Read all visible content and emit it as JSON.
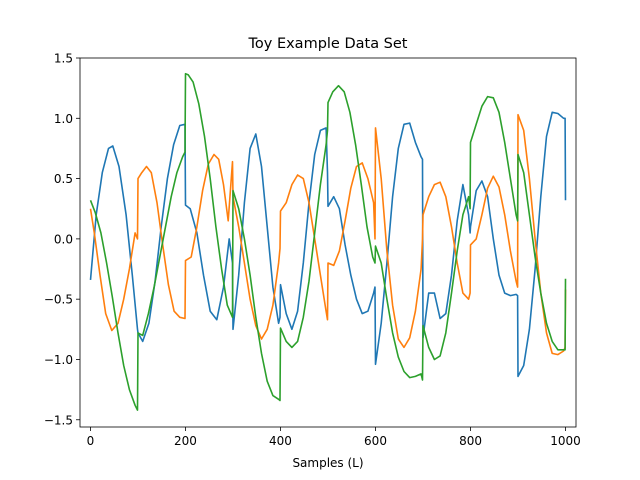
{
  "chart_data": {
    "type": "line",
    "title": "Toy Example Data Set",
    "xlabel": "Samples (L)",
    "ylabel": "",
    "xlim": [
      -22,
      1022
    ],
    "ylim": [
      -1.56,
      1.5
    ],
    "x_ticks": [
      0,
      200,
      400,
      600,
      800,
      1000
    ],
    "y_ticks": [
      -1.5,
      -1.0,
      -0.5,
      0.0,
      0.5,
      1.0,
      1.5
    ],
    "x_tick_labels": [
      "0",
      "200",
      "400",
      "600",
      "800",
      "1000"
    ],
    "y_tick_labels": [
      "−1.5",
      "−1.0",
      "−0.5",
      "0.0",
      "0.5",
      "1.0",
      "1.5"
    ],
    "grid": false,
    "legend": "none",
    "series": [
      {
        "color": "#1f77b4",
        "x": [
          0,
          12,
          25,
          38,
          47,
          60,
          75,
          88,
          99,
          100,
          110,
          123,
          136,
          149,
          162,
          175,
          188,
          199,
          200,
          210,
          224,
          238,
          252,
          266,
          280,
          292,
          299,
          300,
          312,
          324,
          336,
          348,
          360,
          372,
          384,
          396,
          399,
          400,
          412,
          424,
          436,
          448,
          460,
          472,
          484,
          496,
          499,
          500,
          512,
          524,
          536,
          548,
          560,
          572,
          584,
          596,
          599,
          600,
          612,
          624,
          636,
          648,
          660,
          672,
          684,
          696,
          699,
          700,
          712,
          724,
          736,
          748,
          760,
          772,
          784,
          796,
          799,
          800,
          812,
          824,
          836,
          848,
          860,
          872,
          884,
          896,
          899,
          900,
          912,
          924,
          936,
          948,
          960,
          972,
          984,
          996,
          999,
          1000
        ],
        "y": [
          -0.34,
          0.2,
          0.55,
          0.75,
          0.77,
          0.6,
          0.2,
          -0.3,
          -0.75,
          -0.78,
          -0.85,
          -0.7,
          -0.35,
          0.1,
          0.5,
          0.78,
          0.94,
          0.95,
          0.28,
          0.25,
          0.05,
          -0.3,
          -0.6,
          -0.67,
          -0.4,
          0.0,
          -0.2,
          -0.75,
          -0.3,
          0.3,
          0.75,
          0.87,
          0.6,
          0.1,
          -0.4,
          -0.7,
          -0.65,
          -0.38,
          -0.62,
          -0.75,
          -0.6,
          -0.2,
          0.3,
          0.7,
          0.9,
          0.92,
          0.55,
          0.27,
          0.35,
          0.25,
          -0.05,
          -0.3,
          -0.5,
          -0.62,
          -0.6,
          -0.45,
          -0.4,
          -1.04,
          -0.7,
          -0.2,
          0.35,
          0.75,
          0.95,
          0.96,
          0.8,
          0.68,
          0.66,
          -0.82,
          -0.45,
          -0.45,
          -0.66,
          -0.62,
          -0.3,
          0.15,
          0.45,
          0.2,
          0.05,
          0.1,
          0.4,
          0.48,
          0.35,
          0.0,
          -0.3,
          -0.45,
          -0.47,
          -0.46,
          -0.47,
          -1.14,
          -1.05,
          -0.75,
          -0.25,
          0.35,
          0.85,
          1.05,
          1.04,
          1.0,
          1.0,
          0.32
        ]
      },
      {
        "color": "#ff7f0e",
        "x": [
          0,
          8,
          20,
          32,
          45,
          58,
          70,
          82,
          94,
          99,
          100,
          108,
          118,
          128,
          140,
          152,
          164,
          176,
          188,
          199,
          200,
          212,
          224,
          236,
          248,
          260,
          270,
          280,
          290,
          299,
          300,
          312,
          324,
          336,
          348,
          360,
          372,
          384,
          396,
          399,
          400,
          412,
          424,
          436,
          448,
          460,
          472,
          484,
          496,
          499,
          500,
          512,
          524,
          536,
          548,
          560,
          572,
          584,
          596,
          599,
          600,
          612,
          624,
          636,
          648,
          660,
          672,
          684,
          696,
          699,
          700,
          712,
          724,
          736,
          748,
          760,
          772,
          784,
          796,
          799,
          800,
          812,
          824,
          836,
          848,
          860,
          872,
          884,
          896,
          899,
          900,
          912,
          924,
          936,
          948,
          960,
          972,
          984,
          996,
          999,
          1000
        ],
        "y": [
          0.25,
          0.05,
          -0.3,
          -0.62,
          -0.76,
          -0.7,
          -0.5,
          -0.25,
          0.05,
          0.0,
          0.5,
          0.55,
          0.6,
          0.55,
          0.3,
          -0.05,
          -0.38,
          -0.6,
          -0.65,
          -0.66,
          -0.18,
          -0.15,
          0.1,
          0.4,
          0.62,
          0.7,
          0.66,
          0.45,
          0.15,
          0.64,
          0.35,
          0.1,
          -0.2,
          -0.5,
          -0.72,
          -0.83,
          -0.75,
          -0.55,
          -0.2,
          -0.08,
          0.23,
          0.3,
          0.45,
          0.53,
          0.5,
          0.3,
          0.0,
          -0.3,
          -0.6,
          -0.67,
          -0.2,
          -0.22,
          -0.1,
          0.15,
          0.42,
          0.6,
          0.63,
          0.5,
          0.3,
          0.0,
          0.92,
          0.5,
          -0.1,
          -0.55,
          -0.83,
          -0.9,
          -0.82,
          -0.6,
          -0.25,
          0.0,
          0.2,
          0.35,
          0.45,
          0.47,
          0.35,
          0.1,
          -0.2,
          -0.45,
          -0.5,
          -0.45,
          -0.05,
          0.0,
          0.2,
          0.42,
          0.52,
          0.43,
          0.2,
          -0.1,
          -0.35,
          -0.4,
          1.03,
          0.9,
          0.5,
          0.0,
          -0.45,
          -0.78,
          -0.95,
          -0.96,
          -0.93,
          -0.9,
          -0.42
        ]
      },
      {
        "color": "#2ca02c",
        "x": [
          0,
          10,
          22,
          34,
          46,
          58,
          70,
          82,
          94,
          99,
          100,
          110,
          122,
          134,
          146,
          158,
          170,
          182,
          194,
          199,
          200,
          206,
          216,
          228,
          240,
          252,
          264,
          276,
          288,
          299,
          300,
          312,
          324,
          336,
          348,
          360,
          372,
          384,
          396,
          399,
          400,
          412,
          424,
          436,
          448,
          460,
          472,
          484,
          496,
          499,
          500,
          510,
          522,
          534,
          546,
          558,
          570,
          582,
          594,
          599,
          600,
          612,
          624,
          636,
          648,
          660,
          672,
          684,
          696,
          699,
          700,
          712,
          724,
          736,
          748,
          760,
          772,
          784,
          796,
          799,
          800,
          812,
          824,
          836,
          848,
          860,
          872,
          884,
          896,
          899,
          900,
          912,
          924,
          936,
          948,
          960,
          972,
          984,
          996,
          999,
          1000
        ],
        "y": [
          0.32,
          0.22,
          0.05,
          -0.2,
          -0.48,
          -0.78,
          -1.05,
          -1.25,
          -1.38,
          -1.42,
          -0.78,
          -0.8,
          -0.62,
          -0.4,
          -0.15,
          0.1,
          0.35,
          0.55,
          0.68,
          0.72,
          1.37,
          1.36,
          1.3,
          1.12,
          0.85,
          0.5,
          0.1,
          -0.25,
          -0.55,
          -0.65,
          0.4,
          0.25,
          0.0,
          -0.3,
          -0.65,
          -0.95,
          -1.18,
          -1.3,
          -1.33,
          -1.34,
          -0.74,
          -0.85,
          -0.9,
          -0.85,
          -0.65,
          -0.35,
          0.05,
          0.45,
          0.78,
          0.9,
          1.13,
          1.22,
          1.27,
          1.22,
          1.05,
          0.78,
          0.45,
          0.1,
          -0.15,
          -0.2,
          -0.06,
          -0.2,
          -0.5,
          -0.78,
          -0.98,
          -1.1,
          -1.15,
          -1.14,
          -1.12,
          -1.17,
          -0.72,
          -0.9,
          -1.0,
          -0.97,
          -0.78,
          -0.45,
          -0.1,
          0.2,
          0.35,
          0.25,
          0.8,
          0.95,
          1.1,
          1.18,
          1.17,
          1.05,
          0.8,
          0.5,
          0.2,
          0.15,
          0.7,
          0.55,
          0.2,
          -0.15,
          -0.45,
          -0.7,
          -0.85,
          -0.92,
          -0.92,
          -0.92,
          -0.33
        ]
      }
    ]
  }
}
